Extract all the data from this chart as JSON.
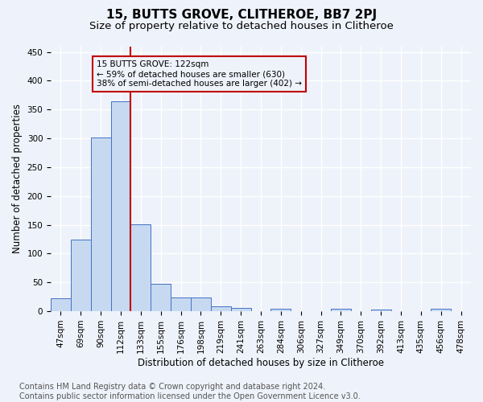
{
  "title": "15, BUTTS GROVE, CLITHEROE, BB7 2PJ",
  "subtitle": "Size of property relative to detached houses in Clitheroe",
  "xlabel": "Distribution of detached houses by size in Clitheroe",
  "ylabel": "Number of detached properties",
  "bin_labels": [
    "47sqm",
    "69sqm",
    "90sqm",
    "112sqm",
    "133sqm",
    "155sqm",
    "176sqm",
    "198sqm",
    "219sqm",
    "241sqm",
    "263sqm",
    "284sqm",
    "306sqm",
    "327sqm",
    "349sqm",
    "370sqm",
    "392sqm",
    "413sqm",
    "435sqm",
    "456sqm",
    "478sqm"
  ],
  "bar_heights": [
    22,
    124,
    302,
    364,
    151,
    47,
    24,
    24,
    8,
    6,
    0,
    5,
    0,
    0,
    4,
    0,
    3,
    0,
    0,
    4,
    0
  ],
  "bar_color": "#c6d9f1",
  "bar_edge_color": "#4472c4",
  "vline_position": 3.476,
  "vline_color": "#c00000",
  "annotation_text": "15 BUTTS GROVE: 122sqm\n← 59% of detached houses are smaller (630)\n38% of semi-detached houses are larger (402) →",
  "annotation_box_edge": "#c00000",
  "ylim": [
    0,
    460
  ],
  "yticks": [
    0,
    50,
    100,
    150,
    200,
    250,
    300,
    350,
    400,
    450
  ],
  "footer_text": "Contains HM Land Registry data © Crown copyright and database right 2024.\nContains public sector information licensed under the Open Government Licence v3.0.",
  "background_color": "#eef2fa",
  "grid_color": "#ffffff",
  "title_fontsize": 11,
  "subtitle_fontsize": 9.5,
  "axis_label_fontsize": 8.5,
  "tick_fontsize": 7.5,
  "footer_fontsize": 7,
  "annotation_fontsize": 7.5
}
